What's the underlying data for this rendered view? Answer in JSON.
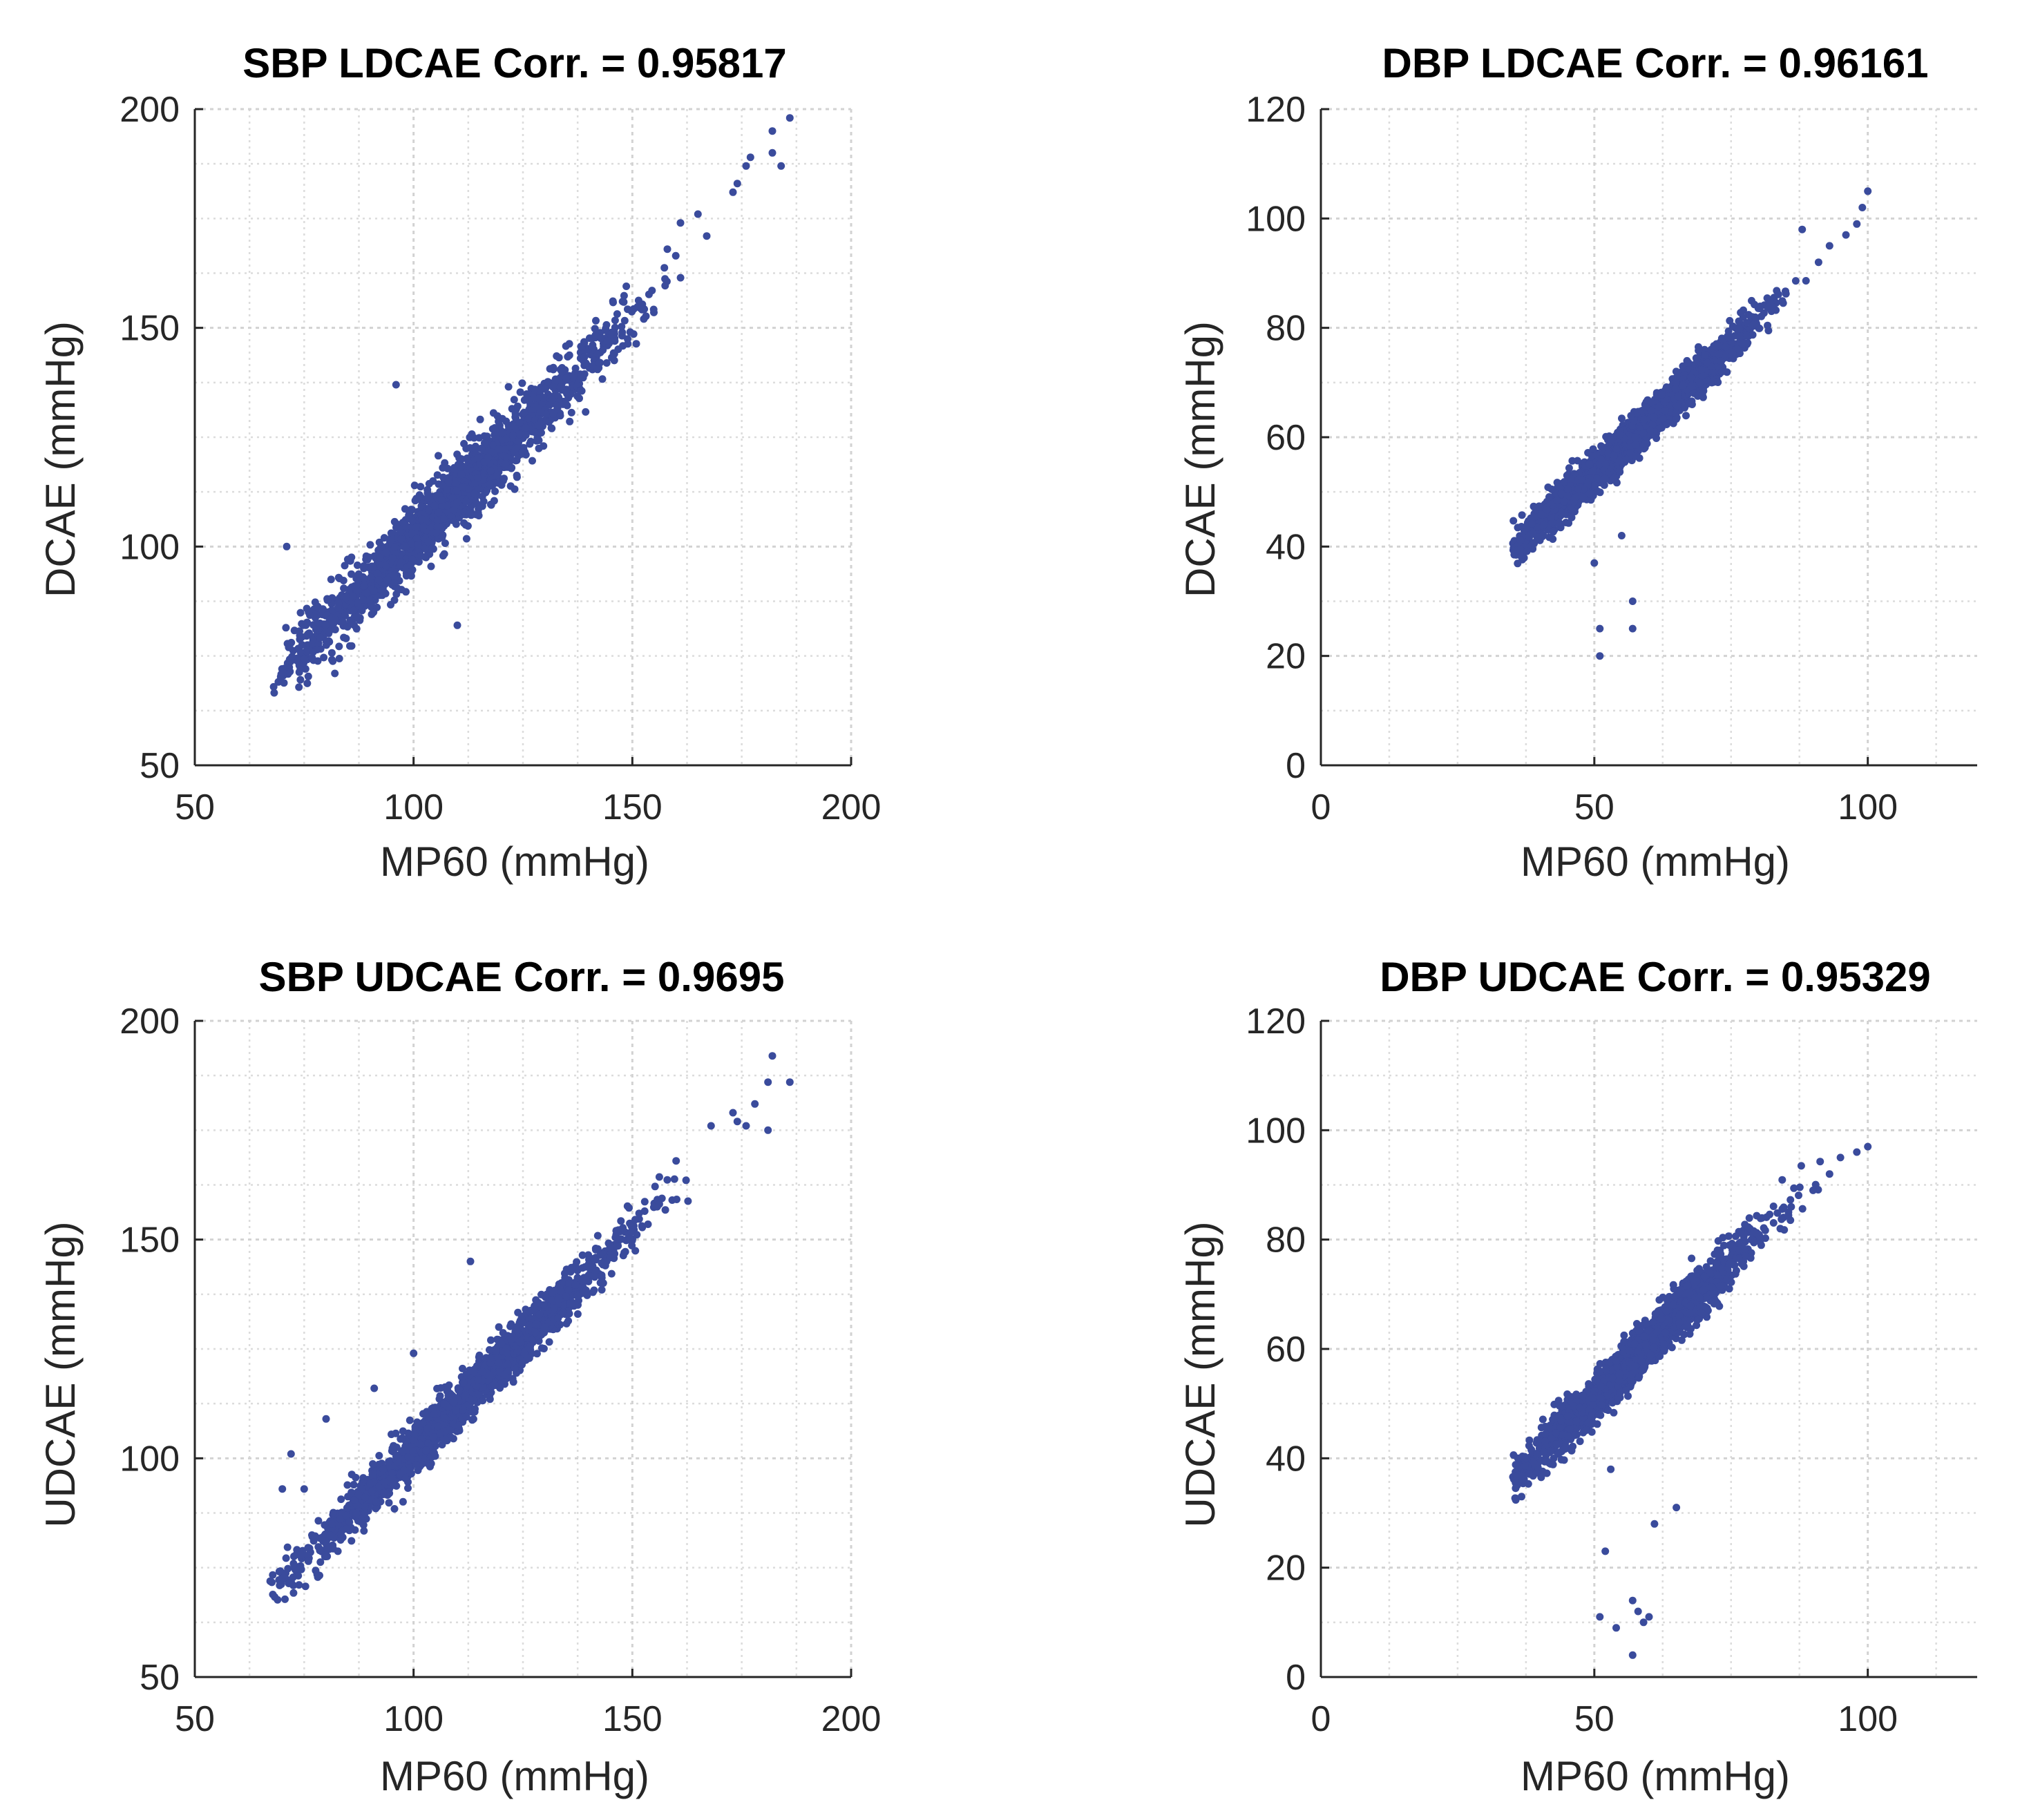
{
  "point_color": "#3a4b9c",
  "chart_data": [
    {
      "type": "scatter",
      "panel": "top-left",
      "title": "SBP LDCAE Corr. = 0.95817",
      "xlabel": "MP60 (mmHg)",
      "ylabel": "DCAE (mmHg)",
      "xlim": [
        50,
        200
      ],
      "ylim": [
        50,
        200
      ],
      "xticks": [
        50,
        100,
        150,
        200
      ],
      "yticks": [
        50,
        100,
        150,
        200
      ],
      "xtick_labels": [
        "50",
        "100",
        "150",
        "200"
      ],
      "ytick_labels": [
        "50",
        "100",
        "150",
        "200"
      ],
      "x_minor_step": 12.5,
      "y_minor_step": 12.5,
      "grid": true,
      "cloud": {
        "n": 1900,
        "x_min": 68,
        "x_max": 163,
        "x_peak": 108,
        "slope": 1.0,
        "intercept": 2,
        "noise_sd": 3.8
      },
      "outliers": [
        [
          186,
          198
        ],
        [
          184,
          187
        ],
        [
          182,
          190
        ],
        [
          177,
          189
        ],
        [
          174,
          183
        ],
        [
          176,
          187
        ],
        [
          182,
          195
        ],
        [
          173,
          181
        ],
        [
          167,
          171
        ],
        [
          161,
          174
        ],
        [
          165,
          176
        ],
        [
          158,
          168
        ],
        [
          71,
          100
        ],
        [
          96,
          137
        ],
        [
          110,
          82
        ],
        [
          82,
          71
        ],
        [
          76,
          85
        ]
      ]
    },
    {
      "type": "scatter",
      "panel": "top-right",
      "title": "DBP LDCAE Corr. = 0.96161",
      "xlabel": "MP60 (mmHg)",
      "ylabel": "DCAE (mmHg)",
      "xlim": [
        0,
        120
      ],
      "ylim": [
        0,
        120
      ],
      "xticks": [
        0,
        50,
        100
      ],
      "yticks": [
        0,
        20,
        40,
        60,
        80,
        100,
        120
      ],
      "xtick_labels": [
        "0",
        "50",
        "100"
      ],
      "ytick_labels": [
        "0",
        "20",
        "40",
        "60",
        "80",
        "100",
        "120"
      ],
      "x_minor_step": 12.5,
      "y_minor_step": 10,
      "grid": true,
      "cloud": {
        "n": 1900,
        "x_min": 35,
        "x_max": 92,
        "x_peak": 56,
        "slope": 0.93,
        "intercept": 7,
        "noise_sd": 1.9
      },
      "outliers": [
        [
          100,
          105
        ],
        [
          99,
          102
        ],
        [
          98,
          99
        ],
        [
          96,
          97
        ],
        [
          93,
          95
        ],
        [
          91,
          92
        ],
        [
          88,
          98
        ],
        [
          51,
          25
        ],
        [
          51,
          20
        ],
        [
          57,
          30
        ],
        [
          57,
          25
        ],
        [
          50,
          37
        ],
        [
          55,
          42
        ],
        [
          45,
          53
        ]
      ]
    },
    {
      "type": "scatter",
      "panel": "bottom-left",
      "title": "SBP UDCAE Corr. = 0.9695",
      "xlabel": "MP60 (mmHg)",
      "ylabel": "UDCAE (mmHg)",
      "xlim": [
        50,
        200
      ],
      "ylim": [
        50,
        200
      ],
      "xticks": [
        50,
        100,
        150,
        200
      ],
      "yticks": [
        50,
        100,
        150,
        200
      ],
      "xtick_labels": [
        "50",
        "100",
        "150",
        "200"
      ],
      "ytick_labels": [
        "50",
        "100",
        "150",
        "200"
      ],
      "x_minor_step": 12.5,
      "y_minor_step": 12.5,
      "grid": true,
      "cloud": {
        "n": 1900,
        "x_min": 67,
        "x_max": 163,
        "x_peak": 110,
        "slope": 1.0,
        "intercept": 2,
        "noise_sd": 2.8
      },
      "outliers": [
        [
          186,
          186
        ],
        [
          182,
          192
        ],
        [
          181,
          186
        ],
        [
          178,
          181
        ],
        [
          176,
          176
        ],
        [
          173,
          179
        ],
        [
          181,
          175
        ],
        [
          174,
          177
        ],
        [
          168,
          176
        ],
        [
          160,
          168
        ],
        [
          72,
          101
        ],
        [
          75,
          93
        ],
        [
          70,
          93
        ],
        [
          80,
          109
        ],
        [
          91,
          116
        ],
        [
          100,
          124
        ],
        [
          113,
          145
        ]
      ]
    },
    {
      "type": "scatter",
      "panel": "bottom-right",
      "title": "DBP UDCAE Corr. = 0.95329",
      "xlabel": "MP60 (mmHg)",
      "ylabel": "UDCAE (mmHg)",
      "xlim": [
        0,
        120
      ],
      "ylim": [
        0,
        120
      ],
      "xticks": [
        0,
        50,
        100
      ],
      "yticks": [
        0,
        20,
        40,
        60,
        80,
        100,
        120
      ],
      "xtick_labels": [
        "0",
        "50",
        "100"
      ],
      "ytick_labels": [
        "0",
        "20",
        "40",
        "60",
        "80",
        "100",
        "120"
      ],
      "x_minor_step": 12.5,
      "y_minor_step": 10,
      "grid": true,
      "cloud": {
        "n": 1900,
        "x_min": 35,
        "x_max": 92,
        "x_peak": 57,
        "slope": 1.0,
        "intercept": 1,
        "noise_sd": 2.2
      },
      "outliers": [
        [
          100,
          97
        ],
        [
          98,
          96
        ],
        [
          95,
          95
        ],
        [
          93,
          92
        ],
        [
          90,
          89
        ],
        [
          86,
          86
        ],
        [
          84,
          82
        ],
        [
          51,
          11
        ],
        [
          54,
          9
        ],
        [
          57,
          14
        ],
        [
          58,
          12
        ],
        [
          59,
          10
        ],
        [
          57,
          4
        ],
        [
          60,
          11
        ],
        [
          52,
          23
        ],
        [
          61,
          28
        ],
        [
          65,
          31
        ],
        [
          53,
          38
        ]
      ]
    }
  ]
}
